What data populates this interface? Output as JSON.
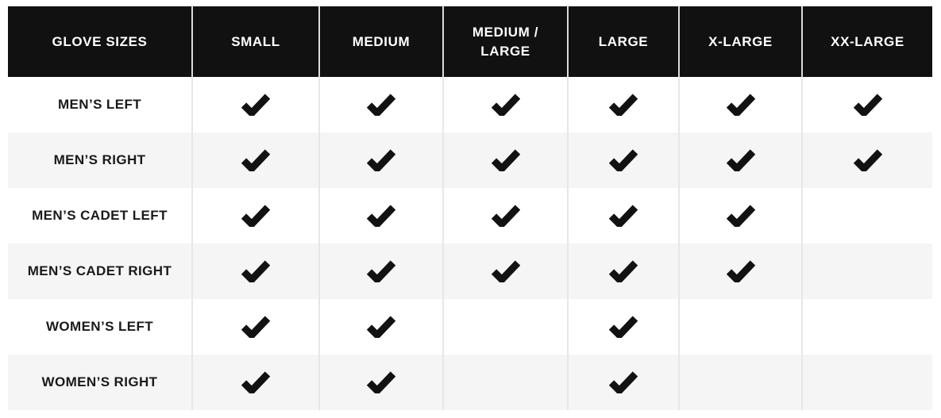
{
  "colors": {
    "header_background": "#111111",
    "header_text": "#ffffff",
    "row_background": "#ffffff",
    "row_alt_background": "#f5f5f5",
    "grid_line": "#e7e7e7",
    "check": "#121212",
    "label_text": "#1a1a1a"
  },
  "icons": {
    "check": "check-icon"
  },
  "chart_data": {
    "type": "table",
    "title": "GLOVE SIZES",
    "columns": [
      "GLOVE SIZES",
      "SMALL",
      "MEDIUM",
      "MEDIUM / LARGE",
      "LARGE",
      "X-LARGE",
      "XX-LARGE"
    ],
    "size_columns": [
      "SMALL",
      "MEDIUM",
      "MEDIUM / LARGE",
      "LARGE",
      "X-LARGE",
      "XX-LARGE"
    ],
    "rows": [
      {
        "label": "MEN’S LEFT",
        "checks": [
          true,
          true,
          true,
          true,
          true,
          true
        ]
      },
      {
        "label": "MEN’S RIGHT",
        "checks": [
          true,
          true,
          true,
          true,
          true,
          true
        ]
      },
      {
        "label": "MEN’S CADET LEFT",
        "checks": [
          true,
          true,
          true,
          true,
          true,
          false
        ]
      },
      {
        "label": "MEN’S CADET RIGHT",
        "checks": [
          true,
          true,
          true,
          true,
          true,
          false
        ]
      },
      {
        "label": "WOMEN’S LEFT",
        "checks": [
          true,
          true,
          false,
          true,
          false,
          false
        ]
      },
      {
        "label": "WOMEN’S RIGHT",
        "checks": [
          true,
          true,
          false,
          true,
          false,
          false
        ]
      }
    ]
  }
}
